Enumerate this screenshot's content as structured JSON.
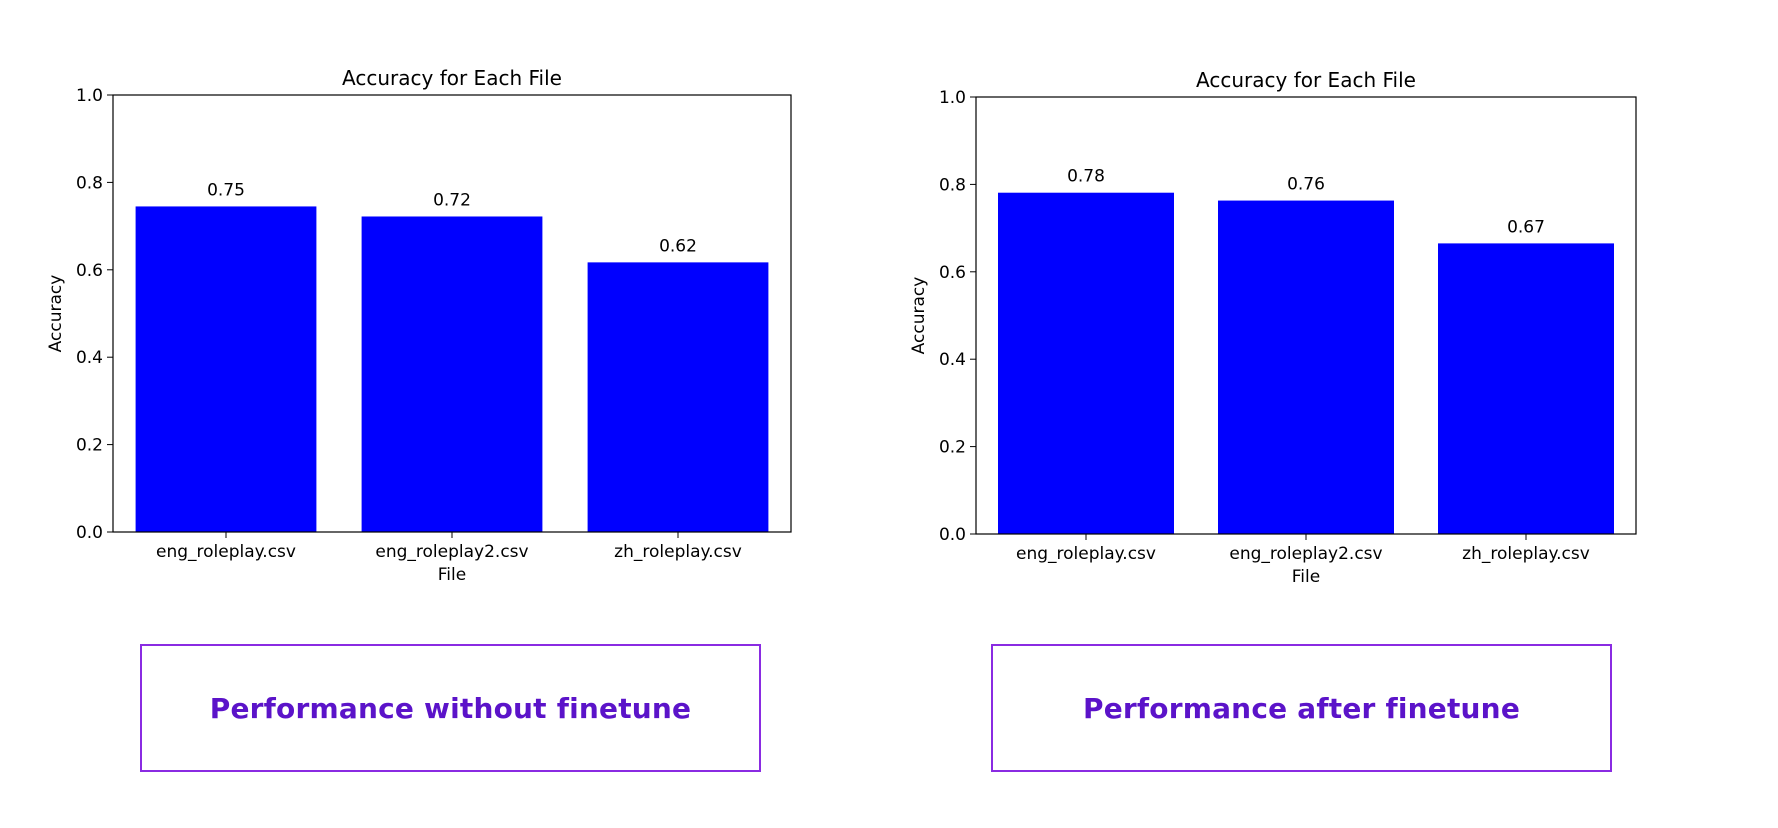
{
  "colors": {
    "bar": "#0000ff",
    "caption_border": "#8a2be2",
    "caption_text": "#5b13c9"
  },
  "chart_data": [
    {
      "type": "bar",
      "title": "Accuracy for Each File",
      "xlabel": "File",
      "ylabel": "Accuracy",
      "ylim": [
        0,
        1.0
      ],
      "yticks": [
        "0.0",
        "0.2",
        "0.4",
        "0.6",
        "0.8",
        "1.0"
      ],
      "categories": [
        "eng_roleplay.csv",
        "eng_roleplay2.csv",
        "zh_roleplay.csv"
      ],
      "values": [
        0.745,
        0.722,
        0.617
      ],
      "data_labels": [
        "0.75",
        "0.72",
        "0.62"
      ],
      "grid": false,
      "legend": "none"
    },
    {
      "type": "bar",
      "title": "Accuracy for Each File",
      "xlabel": "File",
      "ylabel": "Accuracy",
      "ylim": [
        0,
        1.0
      ],
      "yticks": [
        "0.0",
        "0.2",
        "0.4",
        "0.6",
        "0.8",
        "1.0"
      ],
      "categories": [
        "eng_roleplay.csv",
        "eng_roleplay2.csv",
        "zh_roleplay.csv"
      ],
      "values": [
        0.781,
        0.763,
        0.665
      ],
      "data_labels": [
        "0.78",
        "0.76",
        "0.67"
      ],
      "grid": false,
      "legend": "none"
    }
  ],
  "captions": {
    "left": "Performance without finetune",
    "right": "Performance after finetune"
  }
}
